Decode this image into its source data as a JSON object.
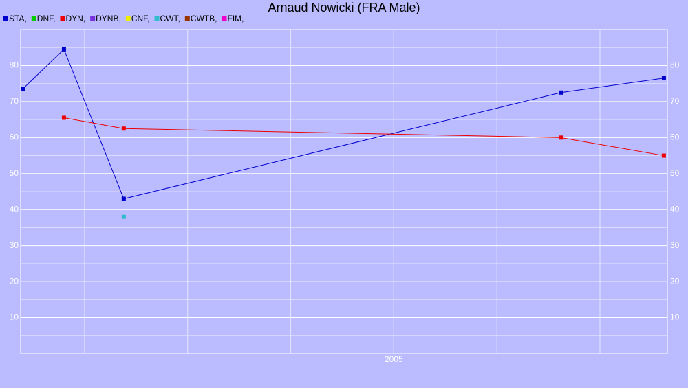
{
  "chart_data": {
    "type": "line",
    "title": "Arnaud Nowicki (FRA Male)",
    "background": "#bbbbff",
    "xlim": [
      2003.19,
      2006.327
    ],
    "xticks": [
      2005
    ],
    "x_grid": [
      2003.5,
      2004,
      2004.5,
      2005,
      2005.5,
      2006
    ],
    "ylim": [
      0,
      90
    ],
    "yticks": [
      10,
      20,
      30,
      40,
      50,
      60,
      70,
      80
    ],
    "y_minor_grid": [
      5,
      15,
      25,
      35,
      45,
      55,
      65,
      75,
      85
    ],
    "grid": true,
    "series": [
      {
        "name": "STA,",
        "color": "#0000cc",
        "x": [
          2003.2,
          2003.4,
          2003.69,
          2005.81,
          2006.31
        ],
        "values": [
          73.5,
          84.5,
          43,
          72.5,
          76.5
        ]
      },
      {
        "name": "DNF,",
        "color": "#00cc00",
        "x": [],
        "values": []
      },
      {
        "name": "DYN,",
        "color": "#ee0000",
        "x": [
          2003.4,
          2003.69,
          2005.81,
          2006.31
        ],
        "values": [
          65.5,
          62.5,
          60,
          55
        ]
      },
      {
        "name": "DYNB,",
        "color": "#7733dd",
        "x": [],
        "values": []
      },
      {
        "name": "CNF,",
        "color": "#eeee00",
        "x": [],
        "values": []
      },
      {
        "name": "CWT,",
        "color": "#33bbcc",
        "x": [
          2003.69
        ],
        "values": [
          38
        ]
      },
      {
        "name": "CWTB,",
        "color": "#993300",
        "x": [],
        "values": []
      },
      {
        "name": "FIM,",
        "color": "#ee00cc",
        "x": [],
        "values": []
      }
    ]
  }
}
